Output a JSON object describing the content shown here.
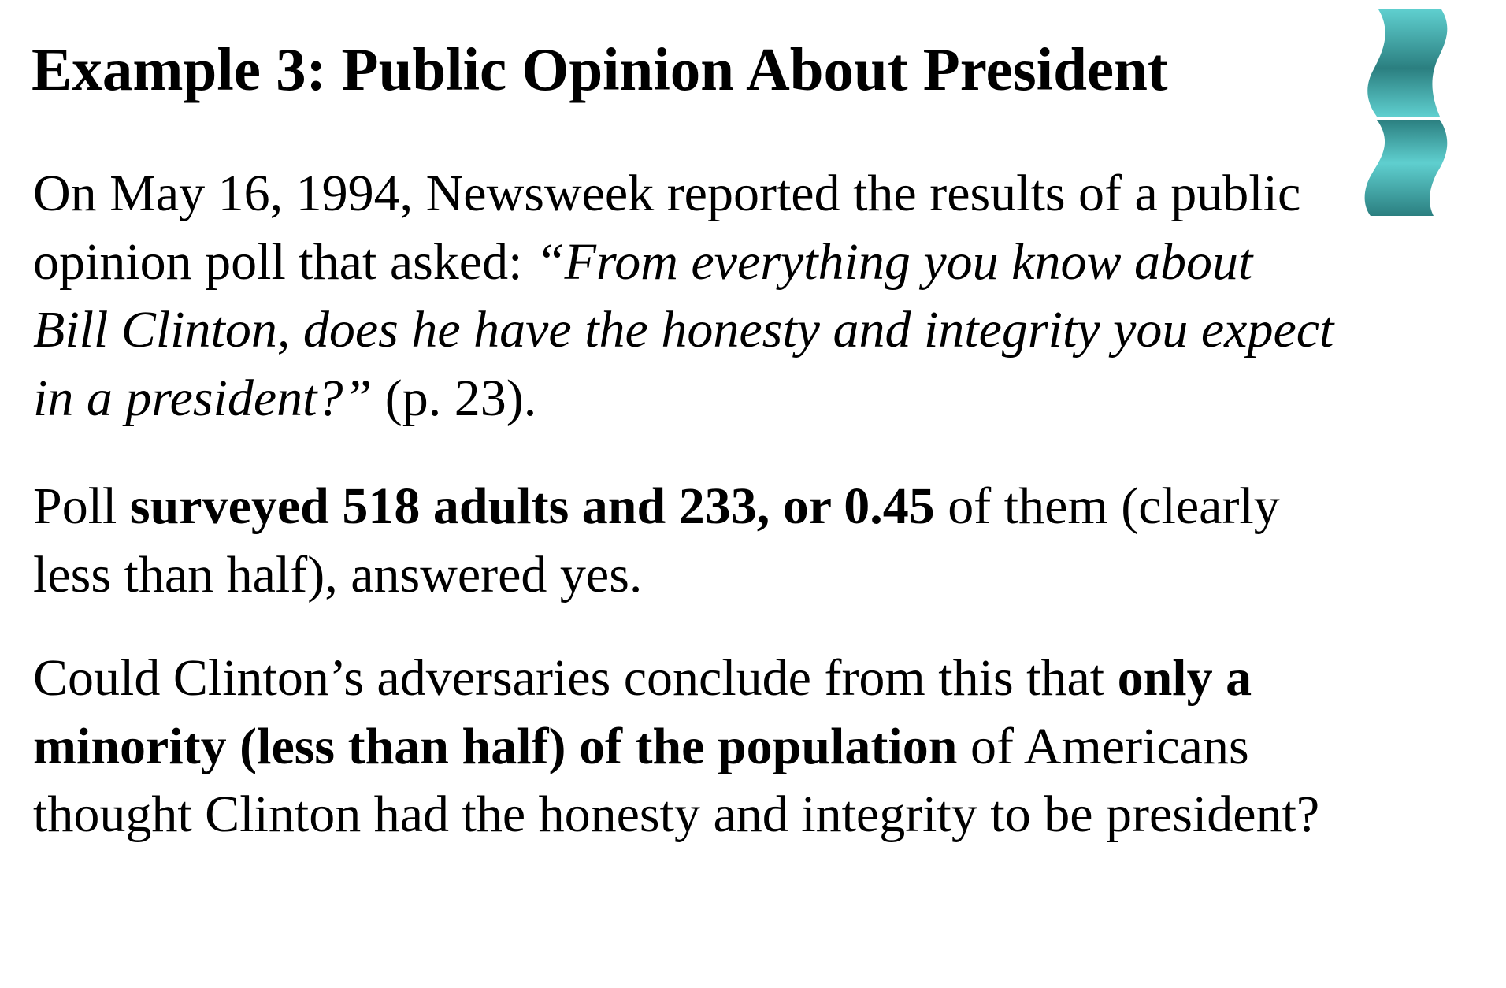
{
  "slide": {
    "title": "Example 3: Public Opinion About President",
    "paragraph1": {
      "intro": "On May 16, 1994, Newsweek reported the results of a public opinion poll that asked: ",
      "quote": "“From everything you know about Bill Clinton, does he have the honesty and integrity you expect in a president?”",
      "citation": " (p. 23)."
    },
    "paragraph2": {
      "lead": "Poll ",
      "bold": "surveyed 518 adults and 233, or 0.45",
      "rest": " of them (clearly less than half), answered yes."
    },
    "paragraph3": {
      "lead": "Could Clinton’s adversaries conclude from this that ",
      "bold": "only a minority (less than half) of the population",
      "rest": " of Americans thought Clinton had the honesty and integrity to be president?"
    },
    "decoration": {
      "icon": "teal-wave-ribbon-icon",
      "color_light": "#5fcfcf",
      "color_dark": "#2b7f80"
    }
  }
}
